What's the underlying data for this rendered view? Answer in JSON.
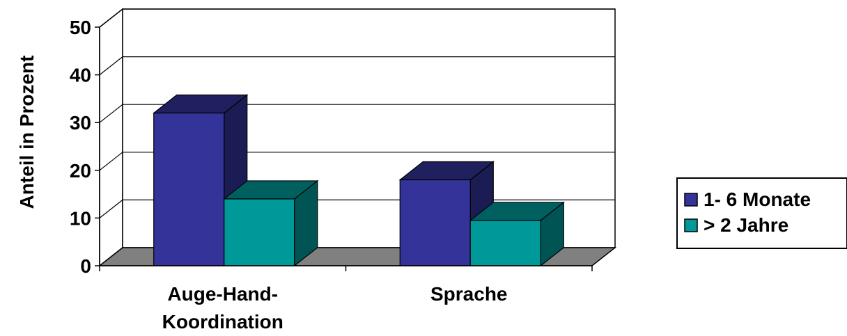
{
  "chart_data": {
    "type": "bar",
    "title": "",
    "ylabel": "Anteil in Prozent",
    "xlabel": "",
    "ylim": [
      0,
      50
    ],
    "yticks": [
      0,
      10,
      20,
      30,
      40,
      50
    ],
    "grid": true,
    "legend_position": "right",
    "categories": [
      {
        "lines": [
          "Auge-Hand-",
          "Koordination"
        ]
      },
      {
        "lines": [
          "Sprache"
        ]
      }
    ],
    "series": [
      {
        "name": "1- 6 Monate",
        "values": [
          32,
          18
        ],
        "color": "#333399"
      },
      {
        "name": "> 2 Jahre",
        "values": [
          14,
          9.5
        ],
        "color": "#009999"
      }
    ]
  }
}
